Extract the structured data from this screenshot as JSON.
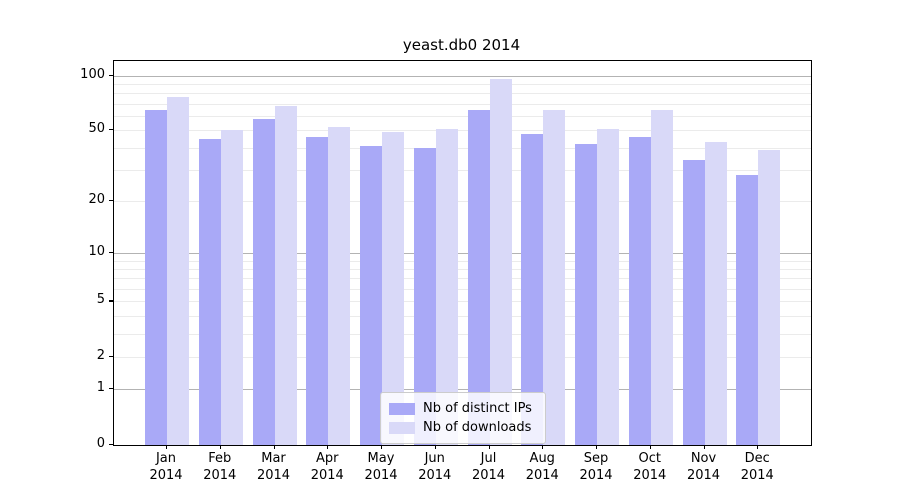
{
  "chart_data": {
    "type": "bar",
    "title": "yeast.db0 2014",
    "categories": [
      "Jan",
      "Feb",
      "Mar",
      "Apr",
      "May",
      "Jun",
      "Jul",
      "Aug",
      "Sep",
      "Oct",
      "Nov",
      "Dec"
    ],
    "category_year": "2014",
    "series": [
      {
        "name": "Nb of distinct IPs",
        "color": "#a9a9f7",
        "values": [
          65,
          45,
          58,
          46,
          41,
          40,
          65,
          48,
          42,
          46,
          34,
          28
        ]
      },
      {
        "name": "Nb of downloads",
        "color": "#d9d9f8",
        "values": [
          76,
          50,
          68,
          52,
          49,
          51,
          96,
          65,
          51,
          65,
          43,
          39
        ]
      }
    ],
    "yscale": "log1p",
    "ylim": [
      0,
      110
    ],
    "yticks": [
      0,
      1,
      2,
      5,
      10,
      20,
      50,
      100
    ],
    "major_gridlines": [
      1,
      10,
      100
    ],
    "minor_gridlines": [
      2,
      3,
      4,
      5,
      6,
      7,
      8,
      9,
      20,
      30,
      40,
      50,
      60,
      70,
      80,
      90
    ],
    "grid": true,
    "legend_position": "bottom-center",
    "xlabel": "",
    "ylabel": ""
  },
  "colors": {
    "background": "#ffffff",
    "spine": "#000000",
    "major_grid": "#b3b3b3",
    "minor_grid": "#ebebeb"
  }
}
